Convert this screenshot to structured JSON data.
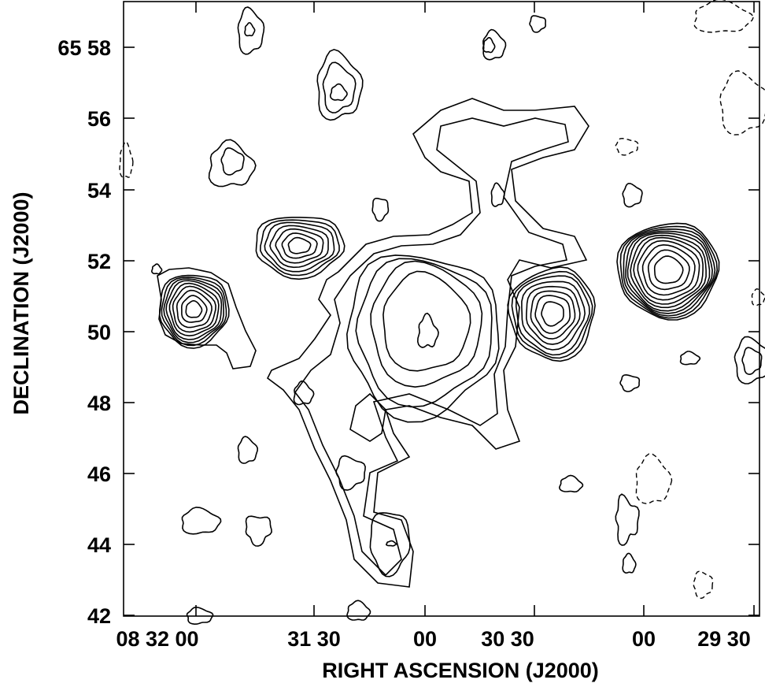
{
  "chart_data": {
    "type": "contour",
    "xlabel": "RIGHT ASCENSION (J2000)",
    "ylabel": "DECLINATION (J2000)",
    "x_tick_labels": [
      "08 32 00",
      "31 30",
      "00",
      "30 30",
      "00",
      "29 30"
    ],
    "y_tick_labels": [
      "65 58",
      "56",
      "54",
      "52",
      "50",
      "48",
      "46",
      "44",
      "42"
    ],
    "xlim_seconds_from_0832": [
      10,
      -95
    ],
    "ylim_arcmin_above_65": [
      41.9,
      59.2
    ],
    "sources": [
      {
        "ra": "08 31 58",
        "dec": "65 50.6",
        "levels": 9,
        "sign": "positive"
      },
      {
        "ra": "08 31 32",
        "dec": "65 52.5",
        "levels": 7,
        "sign": "positive"
      },
      {
        "ra": "08 31 02",
        "dec": "65 50.2",
        "levels": 6,
        "sign": "positive"
      },
      {
        "ra": "08 30 24",
        "dec": "65 50.6",
        "levels": 8,
        "sign": "positive"
      },
      {
        "ra": "08 29 51",
        "dec": "65 51.7",
        "levels": 11,
        "sign": "positive"
      },
      {
        "ra": "08 31 20",
        "dec": "65 56.9",
        "levels": 3,
        "sign": "positive"
      },
      {
        "ra": "08 30 34",
        "dec": "65 55.8",
        "levels": 2,
        "sign": "positive"
      },
      {
        "ra": "08 31 12",
        "dec": "65 44.0",
        "levels": 3,
        "sign": "positive"
      }
    ],
    "negative_contours": "dashed",
    "grid": false
  },
  "colors": {
    "ink": "#000000",
    "background": "#ffffff"
  }
}
